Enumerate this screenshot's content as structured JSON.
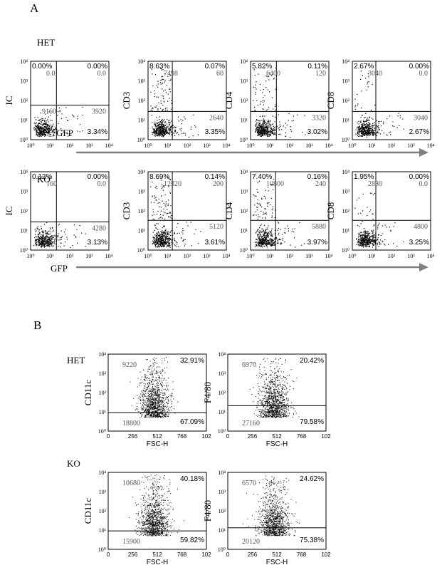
{
  "panel_a": {
    "label": "A",
    "row_labels": [
      "HET",
      "KO"
    ],
    "x_label": "GFP",
    "tick_labels": [
      "10⁰",
      "10¹",
      "10²",
      "10³",
      "10⁴"
    ],
    "arrow_color": "#7f7f7f"
  },
  "panel_b": {
    "label": "B",
    "row_labels": [
      "HET",
      "KO"
    ],
    "x_label": "FSC-H",
    "x_ticks": [
      "0",
      "256",
      "512",
      "768",
      "102"
    ],
    "y_ticks": [
      "10⁰",
      "10¹",
      "10²",
      "10³",
      "10⁴"
    ]
  },
  "chart_data": [
    {
      "type": "scatter",
      "panel": "A",
      "row": "HET",
      "ylabel": "IC",
      "xlabel": "GFP",
      "quadrant_pct": [
        "0.00%",
        "0.00%",
        "",
        "3.34%"
      ],
      "quadrant_counts": [
        "0.0",
        "0.0",
        "9160",
        "3920"
      ]
    },
    {
      "type": "scatter",
      "panel": "A",
      "row": "HET",
      "ylabel": "CD3",
      "quadrant_pct": [
        "8.63%",
        "0.07%",
        "",
        "3.35%"
      ],
      "quadrant_counts": [
        "7498",
        "60",
        "",
        "2640"
      ]
    },
    {
      "type": "scatter",
      "panel": "A",
      "row": "HET",
      "ylabel": "CD4",
      "quadrant_pct": [
        "5.82%",
        "0.11%",
        "",
        "3.02%"
      ],
      "quadrant_counts": [
        "6400",
        "120",
        "",
        "3320"
      ]
    },
    {
      "type": "scatter",
      "panel": "A",
      "row": "HET",
      "ylabel": "CD8",
      "quadrant_pct": [
        "2.67%",
        "0.00%",
        "",
        "2.67%"
      ],
      "quadrant_counts": [
        "3040",
        "0.0",
        "",
        "3040"
      ]
    },
    {
      "type": "scatter",
      "panel": "A",
      "row": "KO",
      "ylabel": "IC",
      "xlabel": "GFP",
      "quadrant_pct": [
        "0.12%",
        "0.00%",
        "",
        "3.13%"
      ],
      "quadrant_counts": [
        "160",
        "0.0",
        "",
        "4280"
      ]
    },
    {
      "type": "scatter",
      "panel": "A",
      "row": "KO",
      "ylabel": "CD3",
      "quadrant_pct": [
        "8.69%",
        "0.14%",
        "",
        "3.61%"
      ],
      "quadrant_counts": [
        "12320",
        "200",
        "",
        "5120"
      ]
    },
    {
      "type": "scatter",
      "panel": "A",
      "row": "KO",
      "ylabel": "CD4",
      "quadrant_pct": [
        "7.40%",
        "0.16%",
        "",
        "3.97%"
      ],
      "quadrant_counts": [
        "10800",
        "240",
        "",
        "5880"
      ]
    },
    {
      "type": "scatter",
      "panel": "A",
      "row": "KO",
      "ylabel": "CD8",
      "quadrant_pct": [
        "1.95%",
        "0.00%",
        "",
        "3.25%"
      ],
      "quadrant_counts": [
        "2880",
        "0.0",
        "",
        "4800"
      ]
    },
    {
      "type": "scatter",
      "panel": "B",
      "row": "HET",
      "ylabel": "CD11c",
      "xlabel": "FSC-H",
      "gate_pct": [
        "32.91%",
        "67.09%"
      ],
      "gate_counts": [
        "9220",
        "18800"
      ]
    },
    {
      "type": "scatter",
      "panel": "B",
      "row": "HET",
      "ylabel": "F4/80",
      "xlabel": "FSC-H",
      "gate_pct": [
        "20.42%",
        "79.58%"
      ],
      "gate_counts": [
        "6970",
        "27160"
      ]
    },
    {
      "type": "scatter",
      "panel": "B",
      "row": "KO",
      "ylabel": "CD11c",
      "xlabel": "FSC-H",
      "gate_pct": [
        "40.18%",
        "59.82%"
      ],
      "gate_counts": [
        "10680",
        "15900"
      ]
    },
    {
      "type": "scatter",
      "panel": "B",
      "row": "KO",
      "ylabel": "F4/80",
      "xlabel": "FSC-H",
      "gate_pct": [
        "24.62%",
        "75.38%"
      ],
      "gate_counts": [
        "6570",
        "20120"
      ]
    }
  ]
}
